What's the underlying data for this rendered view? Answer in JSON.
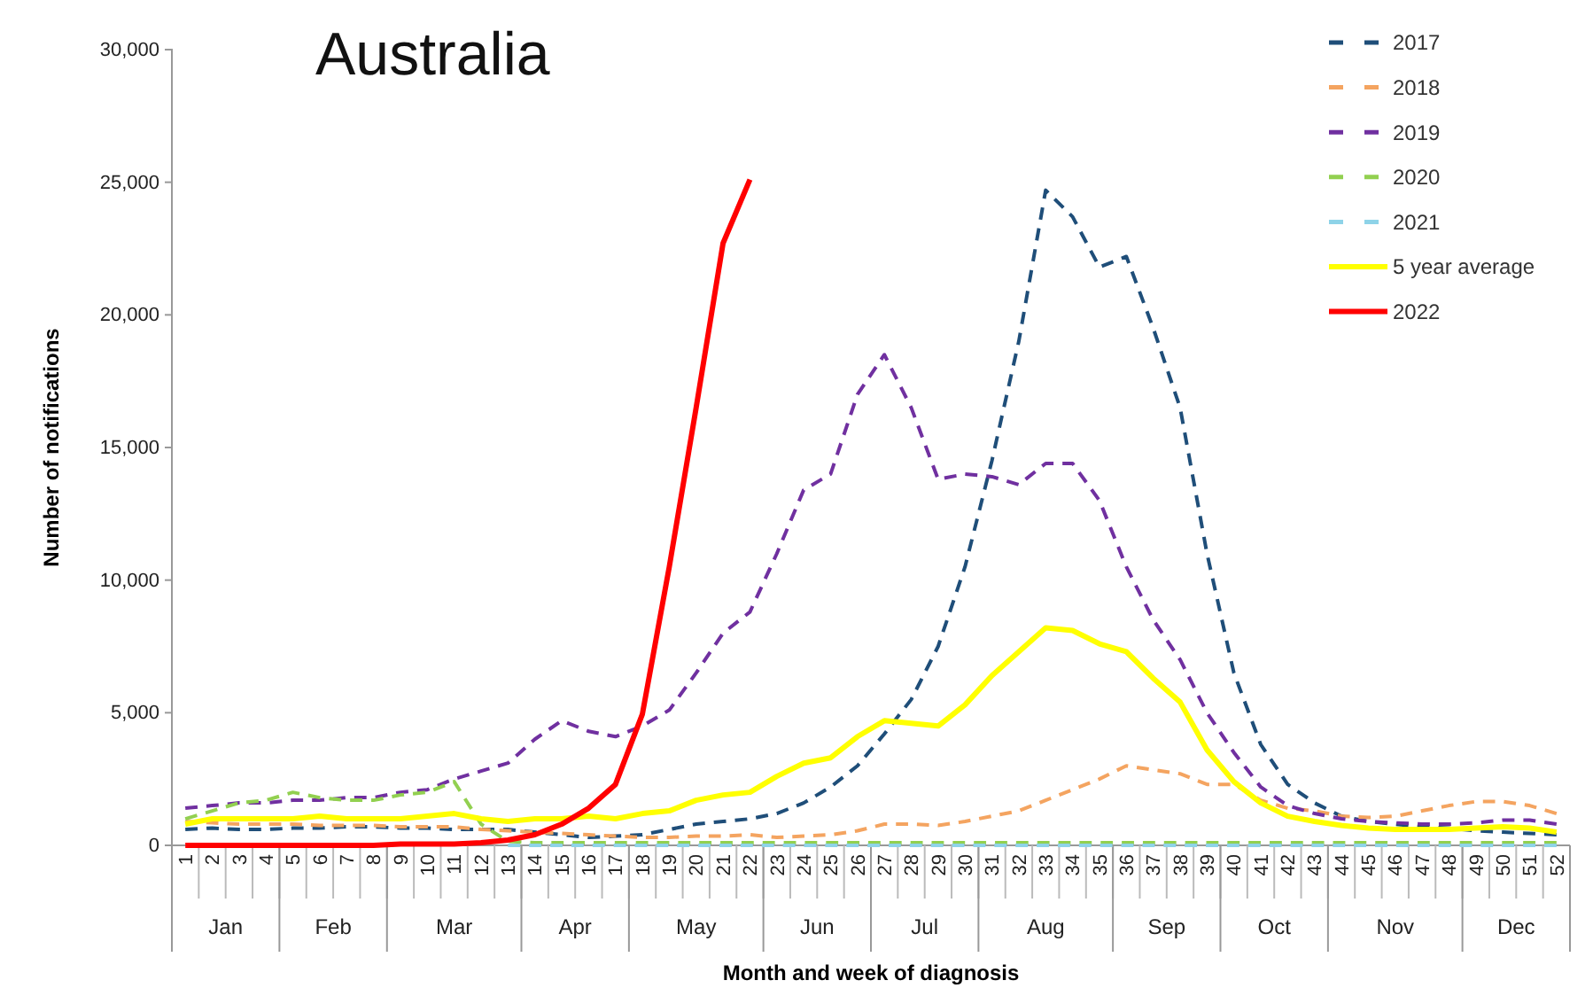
{
  "chart_data": {
    "type": "line",
    "title": "Australia",
    "xlabel": "Month and week of diagnosis",
    "ylabel": "Number of notifications",
    "categories": [
      "1",
      "2",
      "3",
      "4",
      "5",
      "6",
      "7",
      "8",
      "9",
      "10",
      "11",
      "12",
      "13",
      "14",
      "15",
      "16",
      "17",
      "18",
      "19",
      "20",
      "21",
      "22",
      "23",
      "24",
      "25",
      "26",
      "27",
      "28",
      "29",
      "30",
      "31",
      "32",
      "33",
      "34",
      "35",
      "36",
      "37",
      "38",
      "39",
      "40",
      "41",
      "42",
      "43",
      "44",
      "45",
      "46",
      "47",
      "48",
      "49",
      "50",
      "51",
      "52"
    ],
    "annotations": [
      "Jan",
      "Feb",
      "Mar",
      "Apr",
      "May",
      "Jun",
      "Jul",
      "Aug",
      "Sep",
      "Oct",
      "Nov",
      "Dec"
    ],
    "ylim": [
      0,
      30000
    ],
    "yticks": [
      0,
      {
        "value": 5000,
        "label": "5,000"
      },
      {
        "value": 10000,
        "label": "10,000"
      },
      {
        "value": 15000,
        "label": "15,000"
      },
      {
        "value": 20000,
        "label": "20,000"
      },
      {
        "value": 25000,
        "label": "25,000"
      },
      {
        "value": 30000,
        "label": "30,000"
      }
    ],
    "grid": false,
    "legend": "top right",
    "marker": "none",
    "series": [
      {
        "name": "2017",
        "color": "#1f4e79",
        "line_style": "dashed",
        "values": [
          600,
          650,
          600,
          600,
          650,
          650,
          700,
          700,
          650,
          650,
          600,
          600,
          600,
          500,
          400,
          300,
          350,
          400,
          600,
          800,
          900,
          1000,
          1200,
          1600,
          2200,
          3000,
          4200,
          5500,
          7500,
          10500,
          14500,
          19000,
          24700,
          23700,
          21800,
          22200,
          19500,
          16500,
          11000,
          6500,
          3800,
          2300,
          1600,
          1100,
          900,
          800,
          700,
          650,
          550,
          500,
          450,
          400
        ]
      },
      {
        "name": "2018",
        "color": "#f4a460",
        "line_style": "dashed",
        "values": [
          900,
          850,
          800,
          800,
          800,
          750,
          750,
          750,
          700,
          700,
          700,
          600,
          550,
          500,
          450,
          400,
          350,
          300,
          300,
          350,
          350,
          400,
          300,
          350,
          400,
          550,
          800,
          800,
          750,
          900,
          1100,
          1300,
          1700,
          2100,
          2500,
          3000,
          2850,
          2700,
          2300,
          2300,
          1700,
          1400,
          1300,
          1100,
          1050,
          1100,
          1300,
          1500,
          1650,
          1650,
          1500,
          1200
        ]
      },
      {
        "name": "2019",
        "color": "#7030a0",
        "line_style": "dashed",
        "values": [
          1400,
          1500,
          1600,
          1600,
          1700,
          1700,
          1800,
          1800,
          2000,
          2100,
          2500,
          2800,
          3100,
          4000,
          4700,
          4300,
          4100,
          4500,
          5100,
          6500,
          8000,
          8800,
          11000,
          13400,
          14000,
          17000,
          18500,
          16500,
          13800,
          14000,
          13900,
          13600,
          14400,
          14400,
          13000,
          10500,
          8500,
          7000,
          5000,
          3500,
          2200,
          1500,
          1200,
          1000,
          900,
          850,
          800,
          800,
          850,
          950,
          950,
          800
        ]
      },
      {
        "name": "2020",
        "color": "#92d050",
        "line_style": "dashed",
        "values": [
          1000,
          1300,
          1600,
          1700,
          2000,
          1800,
          1700,
          1700,
          1900,
          2000,
          2400,
          800,
          150,
          100,
          100,
          100,
          100,
          100,
          100,
          100,
          100,
          100,
          100,
          100,
          100,
          100,
          100,
          100,
          100,
          100,
          100,
          100,
          100,
          100,
          100,
          100,
          100,
          100,
          100,
          100,
          100,
          100,
          100,
          100,
          100,
          100,
          100,
          100,
          100,
          100,
          100,
          100
        ]
      },
      {
        "name": "2021",
        "color": "#8ed3e8",
        "line_style": "dashed",
        "values": [
          null,
          null,
          null,
          null,
          null,
          null,
          null,
          null,
          null,
          null,
          null,
          null,
          0,
          0,
          0,
          0,
          0,
          0,
          0,
          0,
          0,
          0,
          0,
          0,
          0,
          0,
          0,
          0,
          0,
          0,
          0,
          0,
          0,
          0,
          0,
          0,
          0,
          0,
          0,
          0,
          0,
          0,
          0,
          0,
          0,
          0,
          0,
          0,
          0,
          0,
          0,
          0
        ]
      },
      {
        "name": "5 year average",
        "color": "#ffff00",
        "line_style": "solid",
        "values": [
          800,
          1000,
          1000,
          1000,
          1000,
          1100,
          1000,
          1000,
          1000,
          1100,
          1200,
          1000,
          900,
          1000,
          1000,
          1100,
          1000,
          1200,
          1300,
          1700,
          1900,
          2000,
          2600,
          3100,
          3300,
          4100,
          4700,
          4600,
          4500,
          5300,
          6400,
          7300,
          8200,
          8100,
          7600,
          7300,
          6300,
          5400,
          3600,
          2400,
          1600,
          1100,
          900,
          750,
          650,
          600,
          600,
          600,
          650,
          700,
          650,
          500
        ]
      },
      {
        "name": "2022",
        "color": "#ff0000",
        "line_style": "solid",
        "values": [
          0,
          0,
          0,
          0,
          0,
          0,
          0,
          0,
          50,
          50,
          50,
          100,
          200,
          400,
          800,
          1400,
          2300,
          4950,
          10500,
          16500,
          22700,
          25100,
          null,
          null,
          null,
          null,
          null,
          null,
          null,
          null,
          null,
          null,
          null,
          null,
          null,
          null,
          null,
          null,
          null,
          null,
          null,
          null,
          null,
          null,
          null,
          null,
          null,
          null,
          null,
          null,
          null,
          null
        ]
      }
    ]
  }
}
